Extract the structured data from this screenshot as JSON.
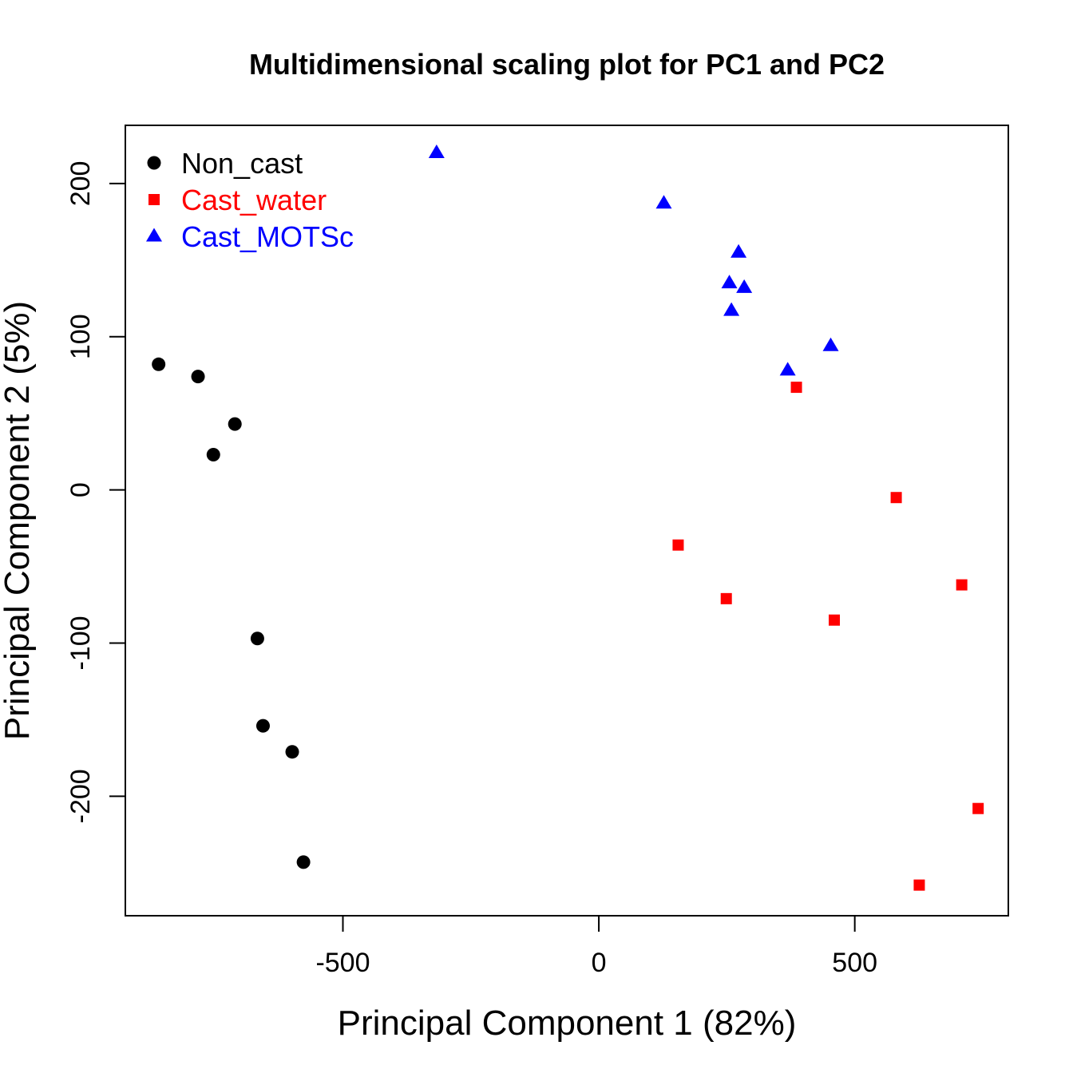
{
  "chart_data": {
    "type": "scatter",
    "title": "Multidimensional scaling plot for PC1 and PC2",
    "xlabel": "Principal Component 1 (82%)",
    "ylabel": "Principal Component 2 (5%)",
    "xlim": [
      -925,
      800
    ],
    "ylim": [
      -278,
      238
    ],
    "xticks": [
      -500,
      0,
      500
    ],
    "yticks": [
      -200,
      -100,
      0,
      100,
      200
    ],
    "grid": false,
    "legend_position": "top-left",
    "series": [
      {
        "name": "Non_cast",
        "color": "#000000",
        "marker": "circle",
        "points": [
          {
            "x": -860,
            "y": 82
          },
          {
            "x": -783,
            "y": 74
          },
          {
            "x": -711,
            "y": 43
          },
          {
            "x": -753,
            "y": 23
          },
          {
            "x": -667,
            "y": -97
          },
          {
            "x": -656,
            "y": -154
          },
          {
            "x": -599,
            "y": -171
          },
          {
            "x": -577,
            "y": -243
          }
        ]
      },
      {
        "name": "Cast_water",
        "color": "#ff0000",
        "marker": "square",
        "points": [
          {
            "x": 386,
            "y": 67
          },
          {
            "x": 581,
            "y": -5
          },
          {
            "x": 155,
            "y": -36
          },
          {
            "x": 249,
            "y": -71
          },
          {
            "x": 460,
            "y": -85
          },
          {
            "x": 709,
            "y": -62
          },
          {
            "x": 741,
            "y": -208
          },
          {
            "x": 626,
            "y": -258
          }
        ]
      },
      {
        "name": "Cast_MOTSc",
        "color": "#0000ff",
        "marker": "triangle",
        "points": [
          {
            "x": -317,
            "y": 220
          },
          {
            "x": 127,
            "y": 187
          },
          {
            "x": 273,
            "y": 155
          },
          {
            "x": 255,
            "y": 135
          },
          {
            "x": 284,
            "y": 132
          },
          {
            "x": 259,
            "y": 117
          },
          {
            "x": 453,
            "y": 94
          },
          {
            "x": 369,
            "y": 78
          }
        ]
      }
    ]
  }
}
